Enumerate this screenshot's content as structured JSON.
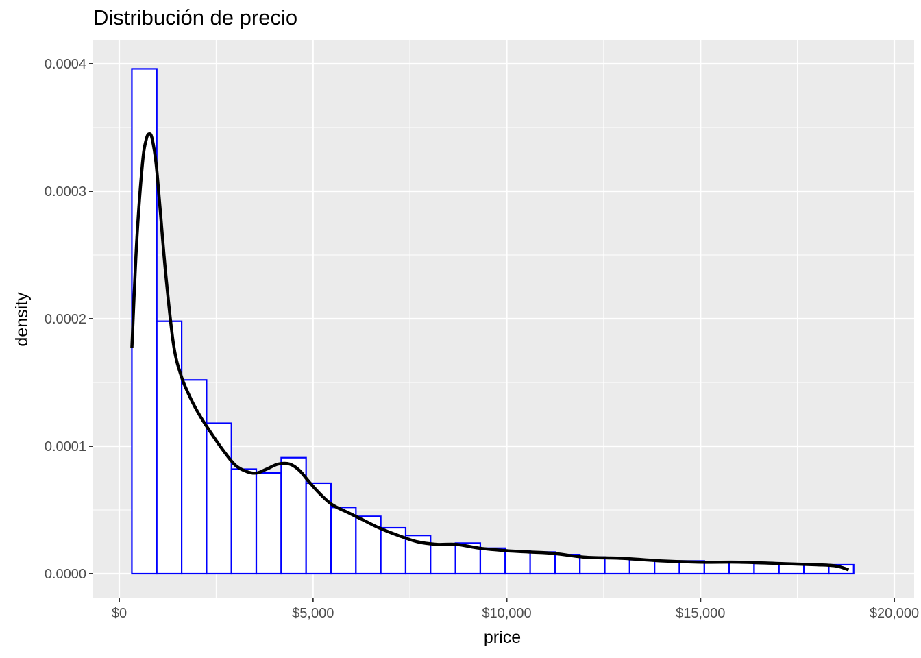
{
  "chart_data": {
    "type": "histogram",
    "title": "Distribución de precio",
    "xlabel": "price",
    "ylabel": "density",
    "xlim": [
      0,
      20000
    ],
    "ylim": [
      0,
      0.0004
    ],
    "x_ticks": [
      0,
      5000,
      10000,
      15000,
      20000
    ],
    "x_tick_labels": [
      "$0",
      "$5,000",
      "$10,000",
      "$15,000",
      "$20,000"
    ],
    "y_ticks": [
      0,
      0.0001,
      0.0002,
      0.0003,
      0.0004
    ],
    "y_tick_labels": [
      "0.0000",
      "0.0001",
      "0.0002",
      "0.0003",
      "0.0004"
    ],
    "grid": true,
    "histogram": {
      "bin_edges": [
        326,
        968,
        1611,
        2253,
        2895,
        3537,
        4180,
        4822,
        5464,
        6107,
        6749,
        7391,
        8033,
        8676,
        9318,
        9960,
        10603,
        11245,
        11887,
        12529,
        13172,
        13814,
        14456,
        15099,
        15741,
        16383,
        17025,
        17668,
        18310,
        18952,
        19594
      ],
      "densities": [
        0.000396,
        0.000198,
        0.000152,
        0.000118,
        8.2e-05,
        7.9e-05,
        9.1e-05,
        7.1e-05,
        5.2e-05,
        4.5e-05,
        3.6e-05,
        3e-05,
        2.3e-05,
        2.4e-05,
        2e-05,
        1.8e-05,
        1.7e-05,
        1.5e-05,
        1.3e-05,
        1.2e-05,
        1.1e-05,
        1e-05,
        1e-05,
        9e-06,
        9e-06,
        8e-06,
        8e-06,
        7e-06,
        7e-06,
        0.0
      ],
      "outline_color": "#0000FF",
      "fill_color": "#FFFFFF"
    },
    "density_curve": {
      "color": "#000000",
      "x": [
        326,
        450,
        600,
        700,
        780,
        850,
        950,
        1050,
        1200,
        1400,
        1600,
        1850,
        2100,
        2400,
        2700,
        3000,
        3300,
        3550,
        3800,
        4100,
        4400,
        4650,
        4900,
        5200,
        5500,
        5900,
        6300,
        6700,
        7200,
        7700,
        8200,
        8700,
        9300,
        10000,
        10600,
        11200,
        12000,
        13000,
        14000,
        15000,
        16000,
        17000,
        18000,
        18500,
        18823
      ],
      "y": [
        0.000177,
        0.00026,
        0.000322,
        0.000341,
        0.000345,
        0.000341,
        0.000322,
        0.000288,
        0.000235,
        0.00018,
        0.000155,
        0.000137,
        0.000123,
        0.000109,
        9.6e-05,
        8.5e-05,
        8e-05,
        7.9e-05,
        8.2e-05,
        8.6e-05,
        8.6e-05,
        8.1e-05,
        7.2e-05,
        6.2e-05,
        5.4e-05,
        4.8e-05,
        4.2e-05,
        3.6e-05,
        3e-05,
        2.5e-05,
        2.3e-05,
        2.3e-05,
        2e-05,
        1.8e-05,
        1.7e-05,
        1.6e-05,
        1.3e-05,
        1.2e-05,
        1e-05,
        9e-06,
        9e-06,
        8e-06,
        7e-06,
        6e-06,
        3e-06
      ]
    }
  }
}
